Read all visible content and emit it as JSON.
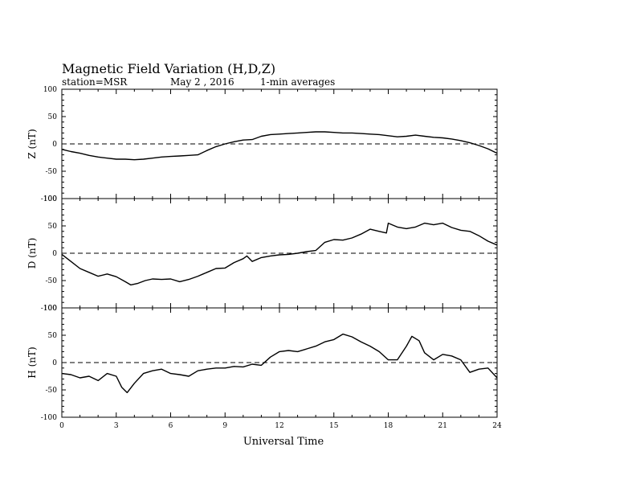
{
  "header": {
    "title": "Magnetic Field Variation (H,D,Z)",
    "station": "station=MSR",
    "date": "May 2  , 2016",
    "averaging": "1-min averages"
  },
  "chart_data": {
    "type": "line",
    "xlabel": "Universal Time",
    "xlim": [
      0,
      24
    ],
    "xticks": [
      "0",
      "3",
      "6",
      "9",
      "12",
      "15",
      "18",
      "21",
      "24"
    ],
    "yticks": [
      "100",
      "50",
      "0",
      "-50",
      "-100"
    ],
    "panels": [
      {
        "name": "Z",
        "ylabel": "Z (nT)",
        "ylim": [
          -100,
          100
        ],
        "x": [
          0,
          0.5,
          1,
          1.5,
          2,
          2.5,
          3,
          3.5,
          4,
          4.5,
          5,
          5.5,
          6,
          6.5,
          7,
          7.5,
          8,
          8.5,
          9,
          9.5,
          10,
          10.5,
          11,
          11.5,
          12,
          12.5,
          13,
          13.5,
          14,
          14.5,
          15,
          15.5,
          16,
          16.5,
          17,
          17.5,
          18,
          18.5,
          19,
          19.5,
          20,
          20.5,
          21,
          21.5,
          22,
          22.5,
          23,
          23.5,
          24
        ],
        "values": [
          -10,
          -14,
          -17,
          -21,
          -24,
          -26,
          -28,
          -28,
          -29,
          -28,
          -26,
          -24,
          -23,
          -22,
          -21,
          -20,
          -12,
          -5,
          0,
          4,
          7,
          8,
          14,
          17,
          18,
          19,
          20,
          21,
          22,
          22,
          21,
          20,
          20,
          19,
          18,
          17,
          15,
          13,
          14,
          16,
          14,
          12,
          11,
          9,
          6,
          2,
          -3,
          -9,
          -17
        ]
      },
      {
        "name": "D",
        "ylabel": "D (nT)",
        "ylim": [
          -100,
          100
        ],
        "x": [
          0,
          0.5,
          1,
          1.5,
          2,
          2.5,
          3,
          3.5,
          3.8,
          4.2,
          4.6,
          5,
          5.5,
          6,
          6.5,
          7,
          7.5,
          8,
          8.5,
          9,
          9.5,
          10,
          10.2,
          10.5,
          11,
          11.5,
          12,
          12.5,
          13,
          13.5,
          14,
          14.5,
          15,
          15.5,
          16,
          16.5,
          17,
          17.5,
          17.9,
          18,
          18.5,
          19,
          19.5,
          20,
          20.5,
          21,
          21.5,
          22,
          22.5,
          23,
          23.5,
          24
        ],
        "values": [
          -2,
          -15,
          -28,
          -35,
          -42,
          -38,
          -43,
          -52,
          -58,
          -55,
          -50,
          -47,
          -48,
          -47,
          -52,
          -48,
          -42,
          -35,
          -28,
          -27,
          -17,
          -10,
          -5,
          -15,
          -8,
          -5,
          -3,
          -2,
          0,
          3,
          5,
          20,
          25,
          24,
          28,
          35,
          44,
          40,
          37,
          55,
          48,
          45,
          48,
          55,
          52,
          55,
          47,
          42,
          40,
          32,
          22,
          15
        ]
      },
      {
        "name": "H",
        "ylabel": "H (nT)",
        "ylim": [
          -100,
          100
        ],
        "x": [
          0,
          0.5,
          1,
          1.5,
          2,
          2.5,
          3,
          3.3,
          3.6,
          4,
          4.5,
          5,
          5.5,
          6,
          6.5,
          7,
          7.5,
          8,
          8.5,
          9,
          9.5,
          10,
          10.5,
          11,
          11.5,
          12,
          12.5,
          13,
          13.5,
          14,
          14.5,
          15,
          15.5,
          16,
          16.5,
          17,
          17.5,
          18,
          18.5,
          19,
          19.3,
          19.7,
          20,
          20.5,
          21,
          21.5,
          22,
          22.5,
          23,
          23.5,
          24
        ],
        "values": [
          -20,
          -22,
          -28,
          -25,
          -33,
          -20,
          -25,
          -45,
          -55,
          -38,
          -20,
          -15,
          -12,
          -20,
          -22,
          -25,
          -15,
          -12,
          -10,
          -10,
          -7,
          -8,
          -3,
          -5,
          10,
          20,
          22,
          20,
          25,
          30,
          38,
          42,
          52,
          47,
          38,
          30,
          20,
          5,
          5,
          30,
          48,
          40,
          18,
          5,
          15,
          12,
          5,
          -18,
          -12,
          -10,
          -28
        ]
      }
    ]
  }
}
